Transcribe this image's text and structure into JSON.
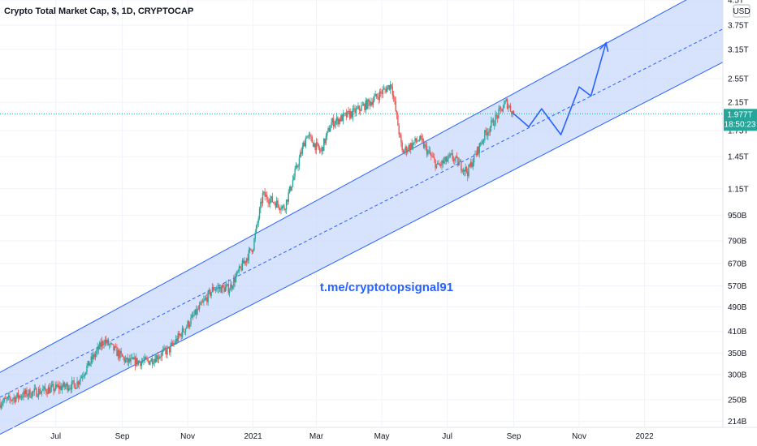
{
  "chart_data": {
    "type": "candlestick",
    "title": "Crypto Total Market Cap, $, 1D, CRYPTOCAP",
    "currency": "USD",
    "y_scale": "log",
    "y_range_usd_b": [
      205,
      4500
    ],
    "x_range": [
      "2020-05-10",
      "2022-03-15"
    ],
    "y_ticks": [
      "4.5T",
      "3.75T",
      "3.15T",
      "2.55T",
      "2.15T",
      "1.75T",
      "1.45T",
      "1.15T",
      "950B",
      "790B",
      "670B",
      "570B",
      "490B",
      "410B",
      "350B",
      "300B",
      "250B",
      "214B"
    ],
    "y_tick_values_b": [
      4500,
      3750,
      3150,
      2550,
      2150,
      1750,
      1450,
      1150,
      950,
      790,
      670,
      570,
      490,
      410,
      350,
      300,
      250,
      214
    ],
    "x_ticks": [
      "Jul",
      "Sep",
      "Nov",
      "2021",
      "Mar",
      "May",
      "Jul",
      "Sep",
      "Nov",
      "2022"
    ],
    "x_tick_dates": [
      "2020-07-01",
      "2020-09-01",
      "2020-11-01",
      "2021-01-01",
      "2021-03-01",
      "2021-05-01",
      "2021-07-01",
      "2021-09-01",
      "2021-11-01",
      "2022-01-01"
    ],
    "last_price_label": "1.977T",
    "last_price_b": 1977,
    "countdown": "18:50:23",
    "annotation": "t.me/cryptotopsignal91",
    "colors": {
      "up": "#26a69a",
      "down": "#ef5350",
      "channel_line": "#2962ff",
      "channel_fill": "#c9d8fc",
      "last_price_badge": "#26a69a"
    },
    "price_path_usd_b": [
      [
        "2020-05-10",
        245
      ],
      [
        "2020-06-01",
        260
      ],
      [
        "2020-06-20",
        268
      ],
      [
        "2020-07-20",
        280
      ],
      [
        "2020-08-15",
        385
      ],
      [
        "2020-09-05",
        330
      ],
      [
        "2020-09-25",
        330
      ],
      [
        "2020-10-15",
        360
      ],
      [
        "2020-11-05",
        450
      ],
      [
        "2020-11-25",
        560
      ],
      [
        "2020-12-10",
        560
      ],
      [
        "2021-01-01",
        760
      ],
      [
        "2021-01-10",
        1100
      ],
      [
        "2021-01-30",
        1000
      ],
      [
        "2021-02-20",
        1700
      ],
      [
        "2021-03-05",
        1500
      ],
      [
        "2021-03-15",
        1850
      ],
      [
        "2021-04-05",
        2000
      ],
      [
        "2021-04-20",
        2150
      ],
      [
        "2021-05-10",
        2450
      ],
      [
        "2021-05-20",
        1500
      ],
      [
        "2021-06-05",
        1650
      ],
      [
        "2021-06-22",
        1350
      ],
      [
        "2021-07-05",
        1450
      ],
      [
        "2021-07-20",
        1300
      ],
      [
        "2021-08-05",
        1700
      ],
      [
        "2021-08-25",
        2150
      ],
      [
        "2021-09-01",
        1977
      ]
    ],
    "channel": {
      "upper": [
        [
          "2020-05-10",
          305
        ],
        [
          "2022-03-15",
          5200
        ]
      ],
      "middle": [
        [
          "2020-05-10",
          255
        ],
        [
          "2022-03-15",
          3650
        ]
      ],
      "lower": [
        [
          "2020-05-10",
          195
        ],
        [
          "2022-03-15",
          2870
        ]
      ]
    },
    "projection_path_usd_b": [
      [
        "2021-09-01",
        1977
      ],
      [
        "2021-09-15",
        1800
      ],
      [
        "2021-09-27",
        2050
      ],
      [
        "2021-10-15",
        1700
      ],
      [
        "2021-11-01",
        2400
      ],
      [
        "2021-11-12",
        2250
      ],
      [
        "2021-11-26",
        3300
      ]
    ]
  }
}
